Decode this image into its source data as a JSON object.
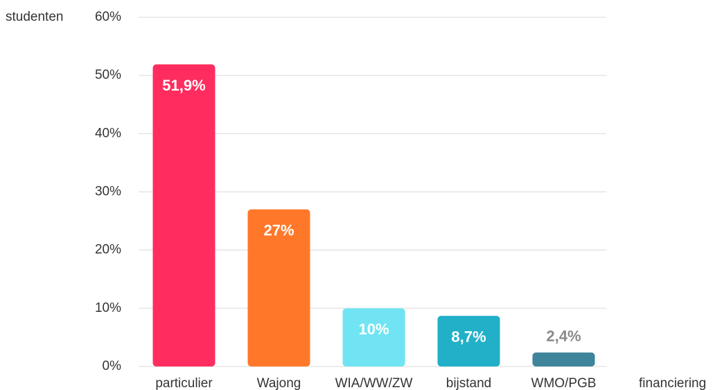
{
  "chart_data": {
    "type": "bar",
    "y_label": "studenten",
    "x_label": "financiering",
    "categories": [
      "particulier",
      "Wajong",
      "WIA/WW/ZW",
      "bijstand",
      "WMO/PGB"
    ],
    "values": [
      51.9,
      27,
      10,
      8.7,
      2.4
    ],
    "value_labels": [
      "51,9%",
      "27%",
      "10%",
      "8,7%",
      "2,4%"
    ],
    "colors": [
      "#ff2d5f",
      "#ff7829",
      "#70e4f3",
      "#22b0c8",
      "#3e849b"
    ],
    "ylim": [
      0,
      60
    ],
    "yticks": [
      {
        "value": 0,
        "label": "0%"
      },
      {
        "value": 10,
        "label": "10%"
      },
      {
        "value": 20,
        "label": "20%"
      },
      {
        "value": 30,
        "label": "30%"
      },
      {
        "value": 40,
        "label": "40%"
      },
      {
        "value": 50,
        "label": "50%"
      },
      {
        "value": 60,
        "label": "60%"
      }
    ],
    "grid": true
  }
}
